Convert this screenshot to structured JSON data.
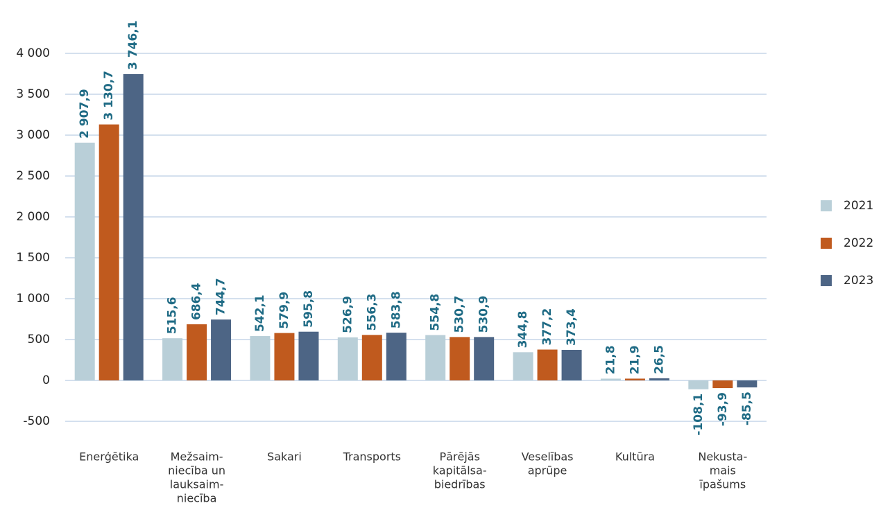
{
  "chart_data": {
    "type": "bar",
    "categories": [
      [
        "Enerģētika"
      ],
      [
        "Mežsaim-",
        "niecība un",
        "lauksaim-",
        "niecība"
      ],
      [
        "Sakari"
      ],
      [
        "Transports"
      ],
      [
        "Pārējās",
        "kapitālsa-",
        "biedrības"
      ],
      [
        "Veselības",
        "aprūpe"
      ],
      [
        "Kultūra"
      ],
      [
        "Nekusta-",
        "mais",
        "īpašums"
      ]
    ],
    "series": [
      {
        "name": "2021",
        "color": "#b9cfd8",
        "values": [
          2907.9,
          515.6,
          542.1,
          526.9,
          554.8,
          344.8,
          21.8,
          -108.1
        ],
        "value_labels": [
          "2 907,9",
          "515,6",
          "542,1",
          "526,9",
          "554,8",
          "344,8",
          "21,8",
          "-108,1"
        ]
      },
      {
        "name": "2022",
        "color": "#c05a1e",
        "values": [
          3130.7,
          686.4,
          579.9,
          556.3,
          530.7,
          377.2,
          21.9,
          -93.9
        ],
        "value_labels": [
          "3 130,7",
          "686,4",
          "579,9",
          "556,3",
          "530,7",
          "377,2",
          "21,9",
          "-93,9"
        ]
      },
      {
        "name": "2023",
        "color": "#4d6585",
        "values": [
          3746.1,
          744.7,
          595.8,
          583.8,
          530.9,
          373.4,
          26.5,
          -85.5
        ],
        "value_labels": [
          "3 746,1",
          "744,7",
          "595,8",
          "583,8",
          "530,9",
          "373,4",
          "26,5",
          "-85,5"
        ]
      }
    ],
    "ylim": [
      -500,
      4000
    ],
    "yticks": [
      -500,
      0,
      500,
      {
        "value": 1000,
        "label": "1 000"
      },
      {
        "value": 1500,
        "label": "1 500"
      },
      {
        "value": 2000,
        "label": "2 000"
      },
      {
        "value": 2500,
        "label": "2 500"
      },
      {
        "value": 3000,
        "label": "3 000"
      },
      {
        "value": 3500,
        "label": "3 500"
      },
      {
        "value": 4000,
        "label": "4 000"
      }
    ],
    "grid": true,
    "legend": "right"
  }
}
